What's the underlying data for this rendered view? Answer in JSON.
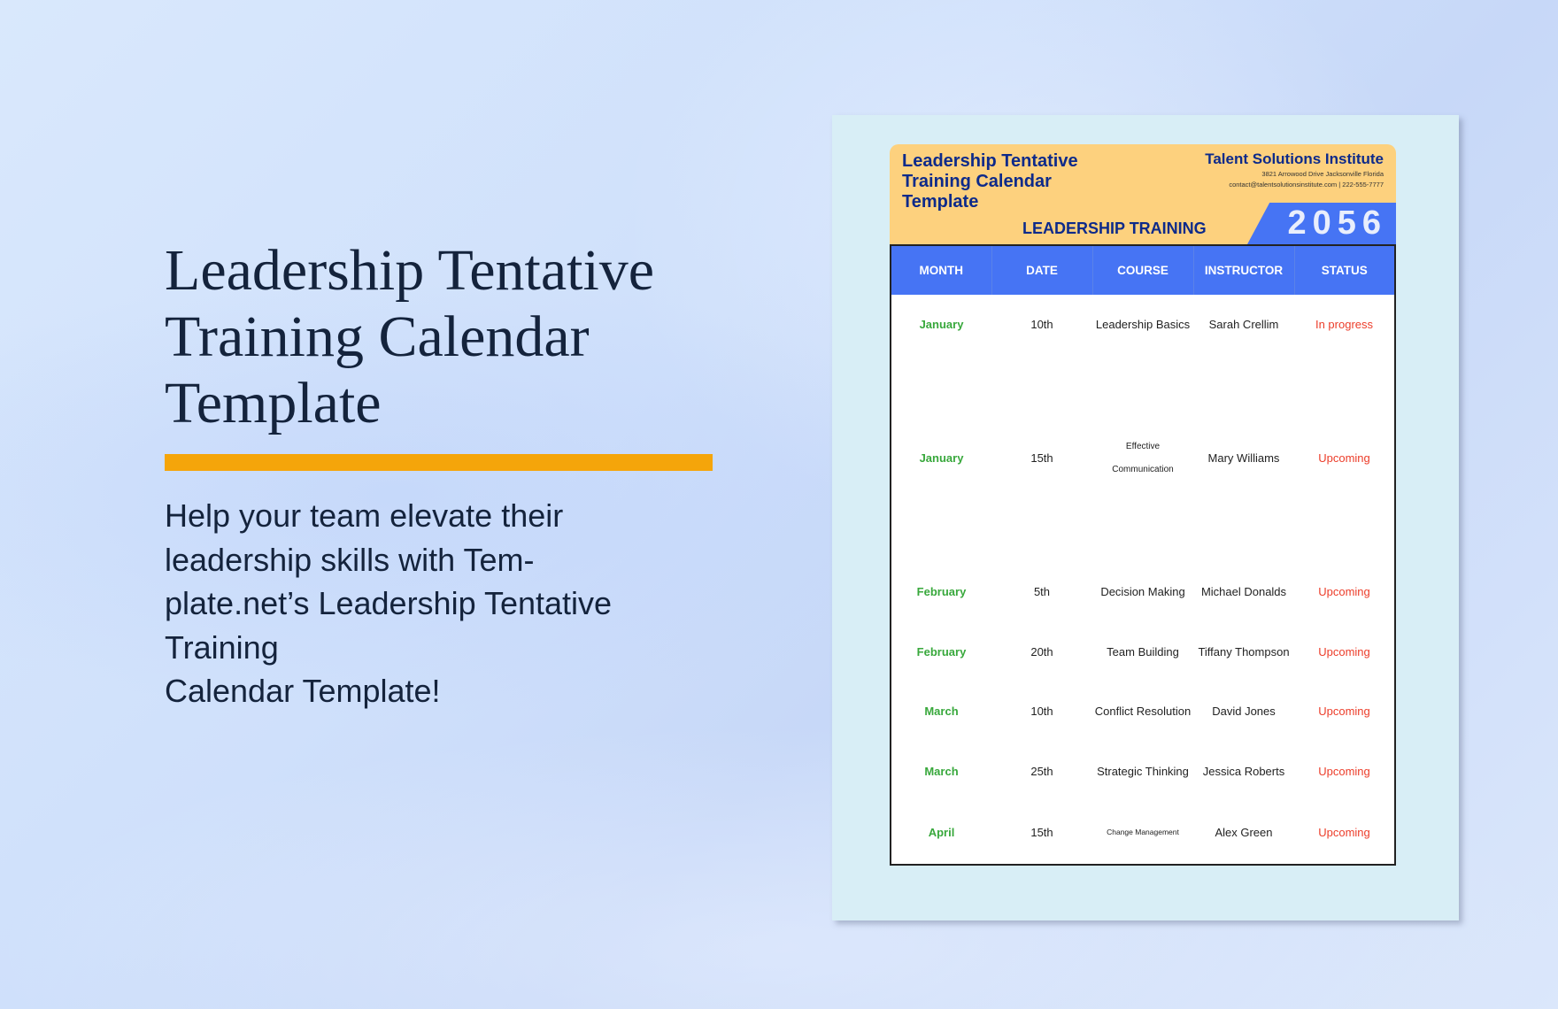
{
  "hero": {
    "title": "Leadership Tentative Training Calendar Template",
    "description_lines": [
      "Help your team elevate their",
      "leadership skills with Tem-",
      "plate.net’s Leadership Tentative",
      "Training",
      "Calendar Template!"
    ],
    "accent_color": "#f5a50a"
  },
  "document": {
    "title_lines": [
      "Leadership Tentative",
      "Training Calendar",
      "Template"
    ],
    "org_name": "Talent Solutions Institute",
    "address": "3821 Arrowood Drive Jacksonville  Florida",
    "contact": "contact@talentsolutionsinstitute.com | 222-555-7777",
    "subtitle": "LEADERSHIP TRAINING",
    "year": "2056",
    "columns": [
      "MONTH",
      "DATE",
      "COURSE",
      "INSTRUCTOR",
      "STATUS"
    ],
    "rows": [
      {
        "month": "January",
        "date": "10th",
        "course": "Leadership Basics",
        "instructor": "Sarah Crellim",
        "status": "In progress"
      },
      {
        "month": "January",
        "date": "15th",
        "course": "Effective Communication",
        "course_lines": [
          "Effective",
          "Communication"
        ],
        "instructor": "Mary Williams",
        "status": "Upcoming"
      },
      {
        "month": "February",
        "date": "5th",
        "course": "Decision Making",
        "instructor": "Michael Donalds",
        "status": "Upcoming"
      },
      {
        "month": "February",
        "date": "20th",
        "course": "Team Building",
        "instructor": "Tiffany Thompson",
        "status": "Upcoming"
      },
      {
        "month": "March",
        "date": "10th",
        "course": "Conflict Resolution",
        "instructor": "David Jones",
        "status": "Upcoming"
      },
      {
        "month": "March",
        "date": "25th",
        "course": "Strategic Thinking",
        "instructor": "Jessica Roberts",
        "status": "Upcoming"
      },
      {
        "month": "April",
        "date": "15th",
        "course": "Change Management",
        "instructor": "Alex Green",
        "status": "Upcoming"
      }
    ]
  }
}
